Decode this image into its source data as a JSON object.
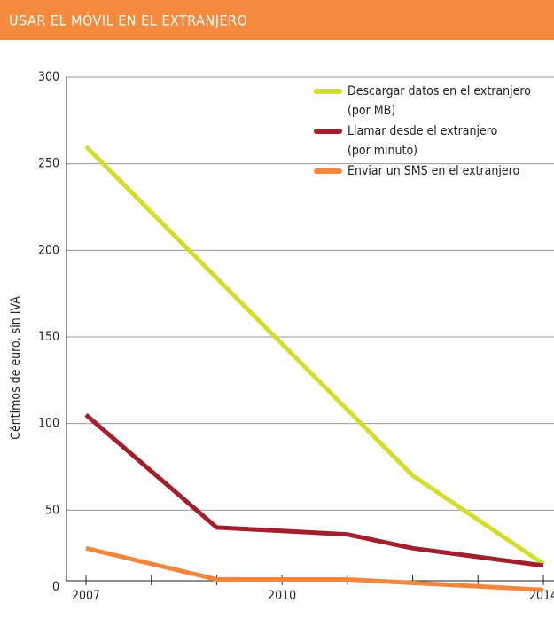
{
  "header": {
    "title": "USAR EL MÓVIL EN EL EXTRANJERO"
  },
  "chart_data": {
    "type": "line",
    "y_label": "Céntimos de euro, sin IVA",
    "x": [
      2007,
      2009,
      2011,
      2012,
      2014
    ],
    "series": [
      {
        "name": "Descargar datos en el extranjero (por MB)",
        "color": "#d3de2c",
        "values": [
          260,
          184,
          108,
          70,
          19
        ]
      },
      {
        "name": "Llamar desde el extranjero (por minuto)",
        "color": "#a31f2c",
        "values": [
          105,
          40,
          36,
          28,
          18
        ]
      },
      {
        "name": "Enviar un SMS en el extranjero",
        "color": "#f4863e",
        "values": [
          28,
          10,
          10,
          8,
          4
        ]
      }
    ],
    "xlim": [
      2007,
      2014
    ],
    "xticks": [
      2007,
      2010,
      2014
    ],
    "minor_xticks": [
      2008,
      2009,
      2011,
      2012,
      2013
    ],
    "ylim": [
      0,
      300
    ],
    "yticks": [
      0,
      50,
      100,
      150,
      200,
      250,
      300
    ],
    "grid": true,
    "legend": "upper right"
  }
}
